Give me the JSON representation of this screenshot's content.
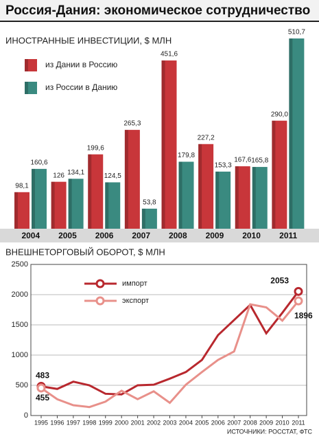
{
  "title": "Россия-Дания: экономическое сотрудничество",
  "source": "ИСТОЧНИКИ: РОССТАТ, ФТС",
  "chart_data": [
    {
      "type": "bar",
      "title": "ИНОСТРАННЫЕ ИНВЕСТИЦИИ, $ МЛН",
      "categories": [
        "2004",
        "2005",
        "2006",
        "2007",
        "2008",
        "2009",
        "2010",
        "2011"
      ],
      "series": [
        {
          "name": "из Дании в Россию",
          "color": "#c8363a",
          "values": [
            98.1,
            126,
            199.6,
            265.3,
            451.6,
            227.2,
            167.6,
            290.0
          ],
          "value_labels": [
            "98,1",
            "126",
            "199,6",
            "265,3",
            "451,6",
            "227,2",
            "167,6",
            "290,0"
          ]
        },
        {
          "name": "из России в Данию",
          "color": "#3a8a80",
          "values": [
            160.6,
            134.1,
            124.5,
            53.8,
            179.8,
            153.3,
            165.8,
            510.7
          ],
          "value_labels": [
            "160,6",
            "134,1",
            "124,5",
            "53,8",
            "179,8",
            "153,3",
            "165,8",
            "510,7"
          ]
        }
      ]
    },
    {
      "type": "line",
      "title": "ВНЕШНЕТОРГОВЫЙ ОБОРОТ, $ МЛН",
      "x": [
        1995,
        1996,
        1997,
        1998,
        1999,
        2000,
        2001,
        2002,
        2003,
        2004,
        2005,
        2006,
        2007,
        2008,
        2009,
        2010,
        2011
      ],
      "xlim": [
        1995,
        2011
      ],
      "ylim": [
        0,
        2500
      ],
      "yticks": [
        0,
        500,
        1000,
        1500,
        2000,
        2500
      ],
      "grid": true,
      "series": [
        {
          "name": "импорт",
          "color": "#b8282e",
          "values": [
            483,
            440,
            560,
            500,
            360,
            350,
            500,
            510,
            610,
            720,
            920,
            1330,
            1580,
            1830,
            1360,
            1700,
            2053
          ]
        },
        {
          "name": "экспорт",
          "color": "#e8908a",
          "values": [
            455,
            270,
            170,
            140,
            230,
            410,
            270,
            400,
            210,
            510,
            720,
            920,
            1060,
            1840,
            1790,
            1570,
            1896
          ]
        }
      ]
    }
  ]
}
